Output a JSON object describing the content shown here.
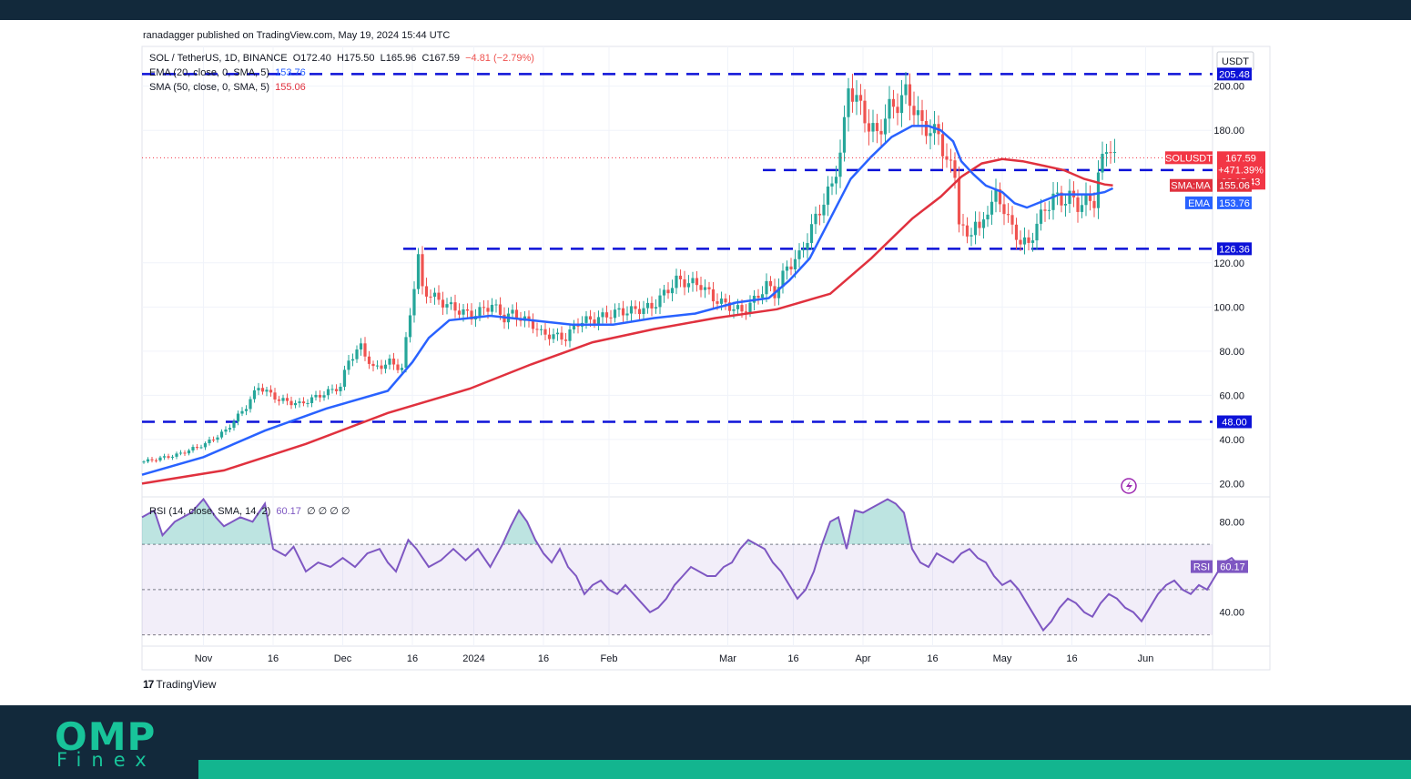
{
  "publisher_line": "ranadagger published on TradingView.com, May 19, 2024 15:44 UTC",
  "brand": {
    "logo_big": "OMP",
    "logo_small": "Finex",
    "tv_logo": "TradingView",
    "tv_mark": "17"
  },
  "currency_label": "USDT",
  "legend": {
    "symbol_line": "SOL / TetherUS, 1D, BINANCE",
    "ohlc": {
      "o": "O172.40",
      "h": "H175.50",
      "l": "L165.96",
      "c": "C167.59",
      "chg": "−4.81 (−2.79%)"
    },
    "ema_label": "EMA (20, close, 0, SMA, 5)",
    "ema_value": "153.76",
    "sma_label": "SMA (50, close, 0, SMA, 5)",
    "sma_value": "155.06",
    "rsi_label": "RSI (14, close, SMA, 14, 2)",
    "rsi_value": "60.17",
    "rsi_extra": "∅ ∅ ∅ ∅"
  },
  "colors": {
    "ema": "#2962ff",
    "sma": "#e0313e",
    "level": "#0d12d8",
    "rsi": "#7e57c2",
    "up": "#26a69a",
    "down": "#ef5350",
    "price_tag": "#f23645"
  },
  "price_tags": {
    "price": {
      "name": "SOLUSDT",
      "value": "167.59",
      "change": "+471.39%",
      "countdown": "08:15:43"
    },
    "sma": {
      "name": "SMA:MA",
      "value": "155.06"
    },
    "ema": {
      "name": "EMA",
      "value": "153.76"
    },
    "rsi": {
      "name": "RSI",
      "value": "60.17"
    }
  },
  "chart_data": [
    {
      "type": "candlestick",
      "title": "SOL / TetherUS, 1D, BINANCE",
      "ylim": [
        14,
        218
      ],
      "y_ticks": [
        "20.00",
        "40.00",
        "60.00",
        "80.00",
        "100.00",
        "120.00",
        "180.00",
        "200.00"
      ],
      "x_ticks": [
        "Nov",
        "16",
        "Dec",
        "16",
        "2024",
        "16",
        "Feb",
        "Mar",
        "16",
        "Apr",
        "16",
        "May",
        "16",
        "Jun"
      ],
      "levels": [
        {
          "label": "205.48",
          "value": 205.48
        },
        {
          "label": "162.00",
          "value": 162.0
        },
        {
          "label": "126.36",
          "value": 126.36
        },
        {
          "label": "48.00",
          "value": 48.0
        }
      ],
      "close_path": [
        [
          0,
          30
        ],
        [
          8,
          33
        ],
        [
          15,
          38
        ],
        [
          20,
          44
        ],
        [
          25,
          55
        ],
        [
          28,
          64
        ],
        [
          33,
          58
        ],
        [
          38,
          56
        ],
        [
          43,
          60
        ],
        [
          48,
          64
        ],
        [
          50,
          76
        ],
        [
          53,
          82
        ],
        [
          56,
          72
        ],
        [
          60,
          75
        ],
        [
          63,
          72
        ],
        [
          66,
          110
        ],
        [
          67,
          122
        ],
        [
          68,
          108
        ],
        [
          72,
          103
        ],
        [
          75,
          100
        ],
        [
          80,
          96
        ],
        [
          85,
          101
        ],
        [
          88,
          95
        ],
        [
          90,
          97
        ],
        [
          95,
          92
        ],
        [
          97,
          88
        ],
        [
          103,
          86
        ],
        [
          106,
          93
        ],
        [
          111,
          95
        ],
        [
          116,
          98
        ],
        [
          118,
          98
        ],
        [
          124,
          100
        ],
        [
          128,
          108
        ],
        [
          130,
          112
        ],
        [
          136,
          110
        ],
        [
          139,
          104
        ],
        [
          142,
          101
        ],
        [
          146,
          98
        ],
        [
          149,
          103
        ],
        [
          152,
          110
        ],
        [
          154,
          106
        ],
        [
          157,
          118
        ],
        [
          160,
          123
        ],
        [
          164,
          140
        ],
        [
          166,
          148
        ],
        [
          168,
          155
        ],
        [
          170,
          170
        ],
        [
          171,
          182
        ],
        [
          172,
          200
        ],
        [
          174,
          194
        ],
        [
          177,
          182
        ],
        [
          179,
          178
        ],
        [
          182,
          190
        ],
        [
          184,
          192
        ],
        [
          186,
          197
        ],
        [
          188,
          190
        ],
        [
          190,
          182
        ],
        [
          192,
          180
        ],
        [
          194,
          178
        ],
        [
          196,
          166
        ],
        [
          198,
          160
        ],
        [
          199,
          140
        ],
        [
          201,
          130
        ],
        [
          203,
          140
        ],
        [
          204,
          133
        ],
        [
          206,
          145
        ],
        [
          208,
          150
        ],
        [
          210,
          145
        ],
        [
          212,
          135
        ],
        [
          214,
          130
        ],
        [
          216,
          128
        ],
        [
          218,
          138
        ],
        [
          220,
          144
        ],
        [
          222,
          150
        ],
        [
          224,
          148
        ],
        [
          226,
          150
        ],
        [
          228,
          146
        ],
        [
          230,
          148
        ],
        [
          232,
          148
        ],
        [
          233,
          160
        ],
        [
          235,
          172
        ],
        [
          236,
          173
        ],
        [
          237,
          167.59
        ]
      ],
      "candle_ranges": [
        {
          "from": 0,
          "to": 8,
          "l": 28,
          "h": 34
        },
        {
          "from": 48,
          "to": 70,
          "l": 58,
          "h": 130
        },
        {
          "from": 165,
          "to": 200,
          "l": 116,
          "h": 210
        },
        {
          "from": 232,
          "to": 237,
          "l": 146,
          "h": 176
        }
      ],
      "series": [
        {
          "name": "EMA (20, close, 0, SMA, 5)",
          "points": [
            [
              0,
              24
            ],
            [
              15,
              32
            ],
            [
              30,
              44
            ],
            [
              45,
              54
            ],
            [
              60,
              62
            ],
            [
              66,
              75
            ],
            [
              70,
              86
            ],
            [
              75,
              94
            ],
            [
              85,
              96
            ],
            [
              95,
              94
            ],
            [
              105,
              92
            ],
            [
              115,
              92
            ],
            [
              125,
              95
            ],
            [
              135,
              97
            ],
            [
              145,
              102
            ],
            [
              153,
              104
            ],
            [
              158,
              112
            ],
            [
              163,
              122
            ],
            [
              168,
              140
            ],
            [
              173,
              158
            ],
            [
              178,
              168
            ],
            [
              183,
              177
            ],
            [
              188,
              182
            ],
            [
              192,
              182
            ],
            [
              195,
              180
            ],
            [
              198,
              175
            ],
            [
              200,
              166
            ],
            [
              203,
              160
            ],
            [
              206,
              155
            ],
            [
              210,
              152
            ],
            [
              213,
              147
            ],
            [
              216,
              145
            ],
            [
              220,
              148
            ],
            [
              224,
              151
            ],
            [
              228,
              151
            ],
            [
              232,
              151
            ],
            [
              235,
              152
            ],
            [
              237,
              153.76
            ]
          ]
        },
        {
          "name": "SMA (50, close, 0, SMA, 5)",
          "points": [
            [
              0,
              20
            ],
            [
              20,
              26
            ],
            [
              40,
              38
            ],
            [
              60,
              52
            ],
            [
              80,
              63
            ],
            [
              95,
              74
            ],
            [
              110,
              84
            ],
            [
              125,
              90
            ],
            [
              140,
              95
            ],
            [
              155,
              99
            ],
            [
              168,
              106
            ],
            [
              178,
              122
            ],
            [
              188,
              140
            ],
            [
              195,
              150
            ],
            [
              200,
              159
            ],
            [
              205,
              165
            ],
            [
              210,
              167
            ],
            [
              215,
              166
            ],
            [
              220,
              164
            ],
            [
              225,
              162
            ],
            [
              230,
              158
            ],
            [
              235,
              155.5
            ],
            [
              237,
              155.06
            ]
          ]
        }
      ]
    },
    {
      "type": "line",
      "title": "RSI (14, close, SMA, 14, 2)",
      "ylim": [
        25,
        91
      ],
      "y_ticks": [
        "40.00",
        "80.00"
      ],
      "bands": {
        "upper": 70,
        "middle": 50,
        "lower": 30
      },
      "series": [
        {
          "name": "RSI",
          "points": [
            [
              0,
              82
            ],
            [
              3,
              85
            ],
            [
              5,
              74
            ],
            [
              8,
              80
            ],
            [
              12,
              84
            ],
            [
              15,
              90
            ],
            [
              18,
              82
            ],
            [
              20,
              78
            ],
            [
              24,
              82
            ],
            [
              27,
              80
            ],
            [
              30,
              88
            ],
            [
              32,
              68
            ],
            [
              35,
              65
            ],
            [
              37,
              69
            ],
            [
              40,
              58
            ],
            [
              43,
              62
            ],
            [
              46,
              60
            ],
            [
              49,
              64
            ],
            [
              52,
              60
            ],
            [
              55,
              66
            ],
            [
              58,
              68
            ],
            [
              60,
              62
            ],
            [
              62,
              58
            ],
            [
              65,
              72
            ],
            [
              67,
              68
            ],
            [
              70,
              60
            ],
            [
              73,
              63
            ],
            [
              76,
              68
            ],
            [
              79,
              63
            ],
            [
              82,
              68
            ],
            [
              85,
              60
            ],
            [
              88,
              70
            ],
            [
              90,
              78
            ],
            [
              92,
              85
            ],
            [
              94,
              80
            ],
            [
              96,
              72
            ],
            [
              98,
              66
            ],
            [
              100,
              62
            ],
            [
              102,
              68
            ],
            [
              104,
              60
            ],
            [
              106,
              56
            ],
            [
              108,
              48
            ],
            [
              110,
              52
            ],
            [
              112,
              54
            ],
            [
              114,
              50
            ],
            [
              116,
              48
            ],
            [
              118,
              52
            ],
            [
              120,
              48
            ],
            [
              122,
              44
            ],
            [
              124,
              40
            ],
            [
              126,
              42
            ],
            [
              128,
              46
            ],
            [
              130,
              52
            ],
            [
              132,
              56
            ],
            [
              134,
              60
            ],
            [
              136,
              58
            ],
            [
              138,
              56
            ],
            [
              140,
              56
            ],
            [
              142,
              60
            ],
            [
              144,
              62
            ],
            [
              146,
              68
            ],
            [
              148,
              72
            ],
            [
              150,
              70
            ],
            [
              152,
              68
            ],
            [
              154,
              62
            ],
            [
              156,
              58
            ],
            [
              158,
              52
            ],
            [
              160,
              46
            ],
            [
              162,
              50
            ],
            [
              164,
              58
            ],
            [
              166,
              70
            ],
            [
              168,
              80
            ],
            [
              170,
              82
            ],
            [
              172,
              68
            ],
            [
              174,
              85
            ],
            [
              176,
              84
            ],
            [
              178,
              86
            ],
            [
              180,
              88
            ],
            [
              182,
              90
            ],
            [
              184,
              88
            ],
            [
              186,
              84
            ],
            [
              188,
              68
            ],
            [
              190,
              62
            ],
            [
              192,
              60
            ],
            [
              194,
              66
            ],
            [
              196,
              64
            ],
            [
              198,
              62
            ],
            [
              200,
              66
            ],
            [
              202,
              68
            ],
            [
              204,
              64
            ],
            [
              206,
              62
            ],
            [
              208,
              56
            ],
            [
              210,
              52
            ],
            [
              212,
              54
            ],
            [
              214,
              50
            ],
            [
              216,
              44
            ],
            [
              218,
              38
            ],
            [
              220,
              32
            ],
            [
              222,
              36
            ],
            [
              224,
              42
            ],
            [
              226,
              46
            ],
            [
              228,
              44
            ],
            [
              230,
              40
            ],
            [
              232,
              38
            ],
            [
              234,
              44
            ],
            [
              236,
              48
            ],
            [
              238,
              46
            ],
            [
              240,
              42
            ],
            [
              242,
              40
            ],
            [
              244,
              36
            ],
            [
              246,
              42
            ],
            [
              248,
              48
            ],
            [
              250,
              52
            ],
            [
              252,
              54
            ],
            [
              254,
              50
            ],
            [
              256,
              48
            ],
            [
              258,
              52
            ],
            [
              260,
              50
            ],
            [
              262,
              56
            ],
            [
              264,
              62
            ],
            [
              266,
              64
            ],
            [
              268,
              60.17
            ]
          ]
        }
      ]
    }
  ]
}
